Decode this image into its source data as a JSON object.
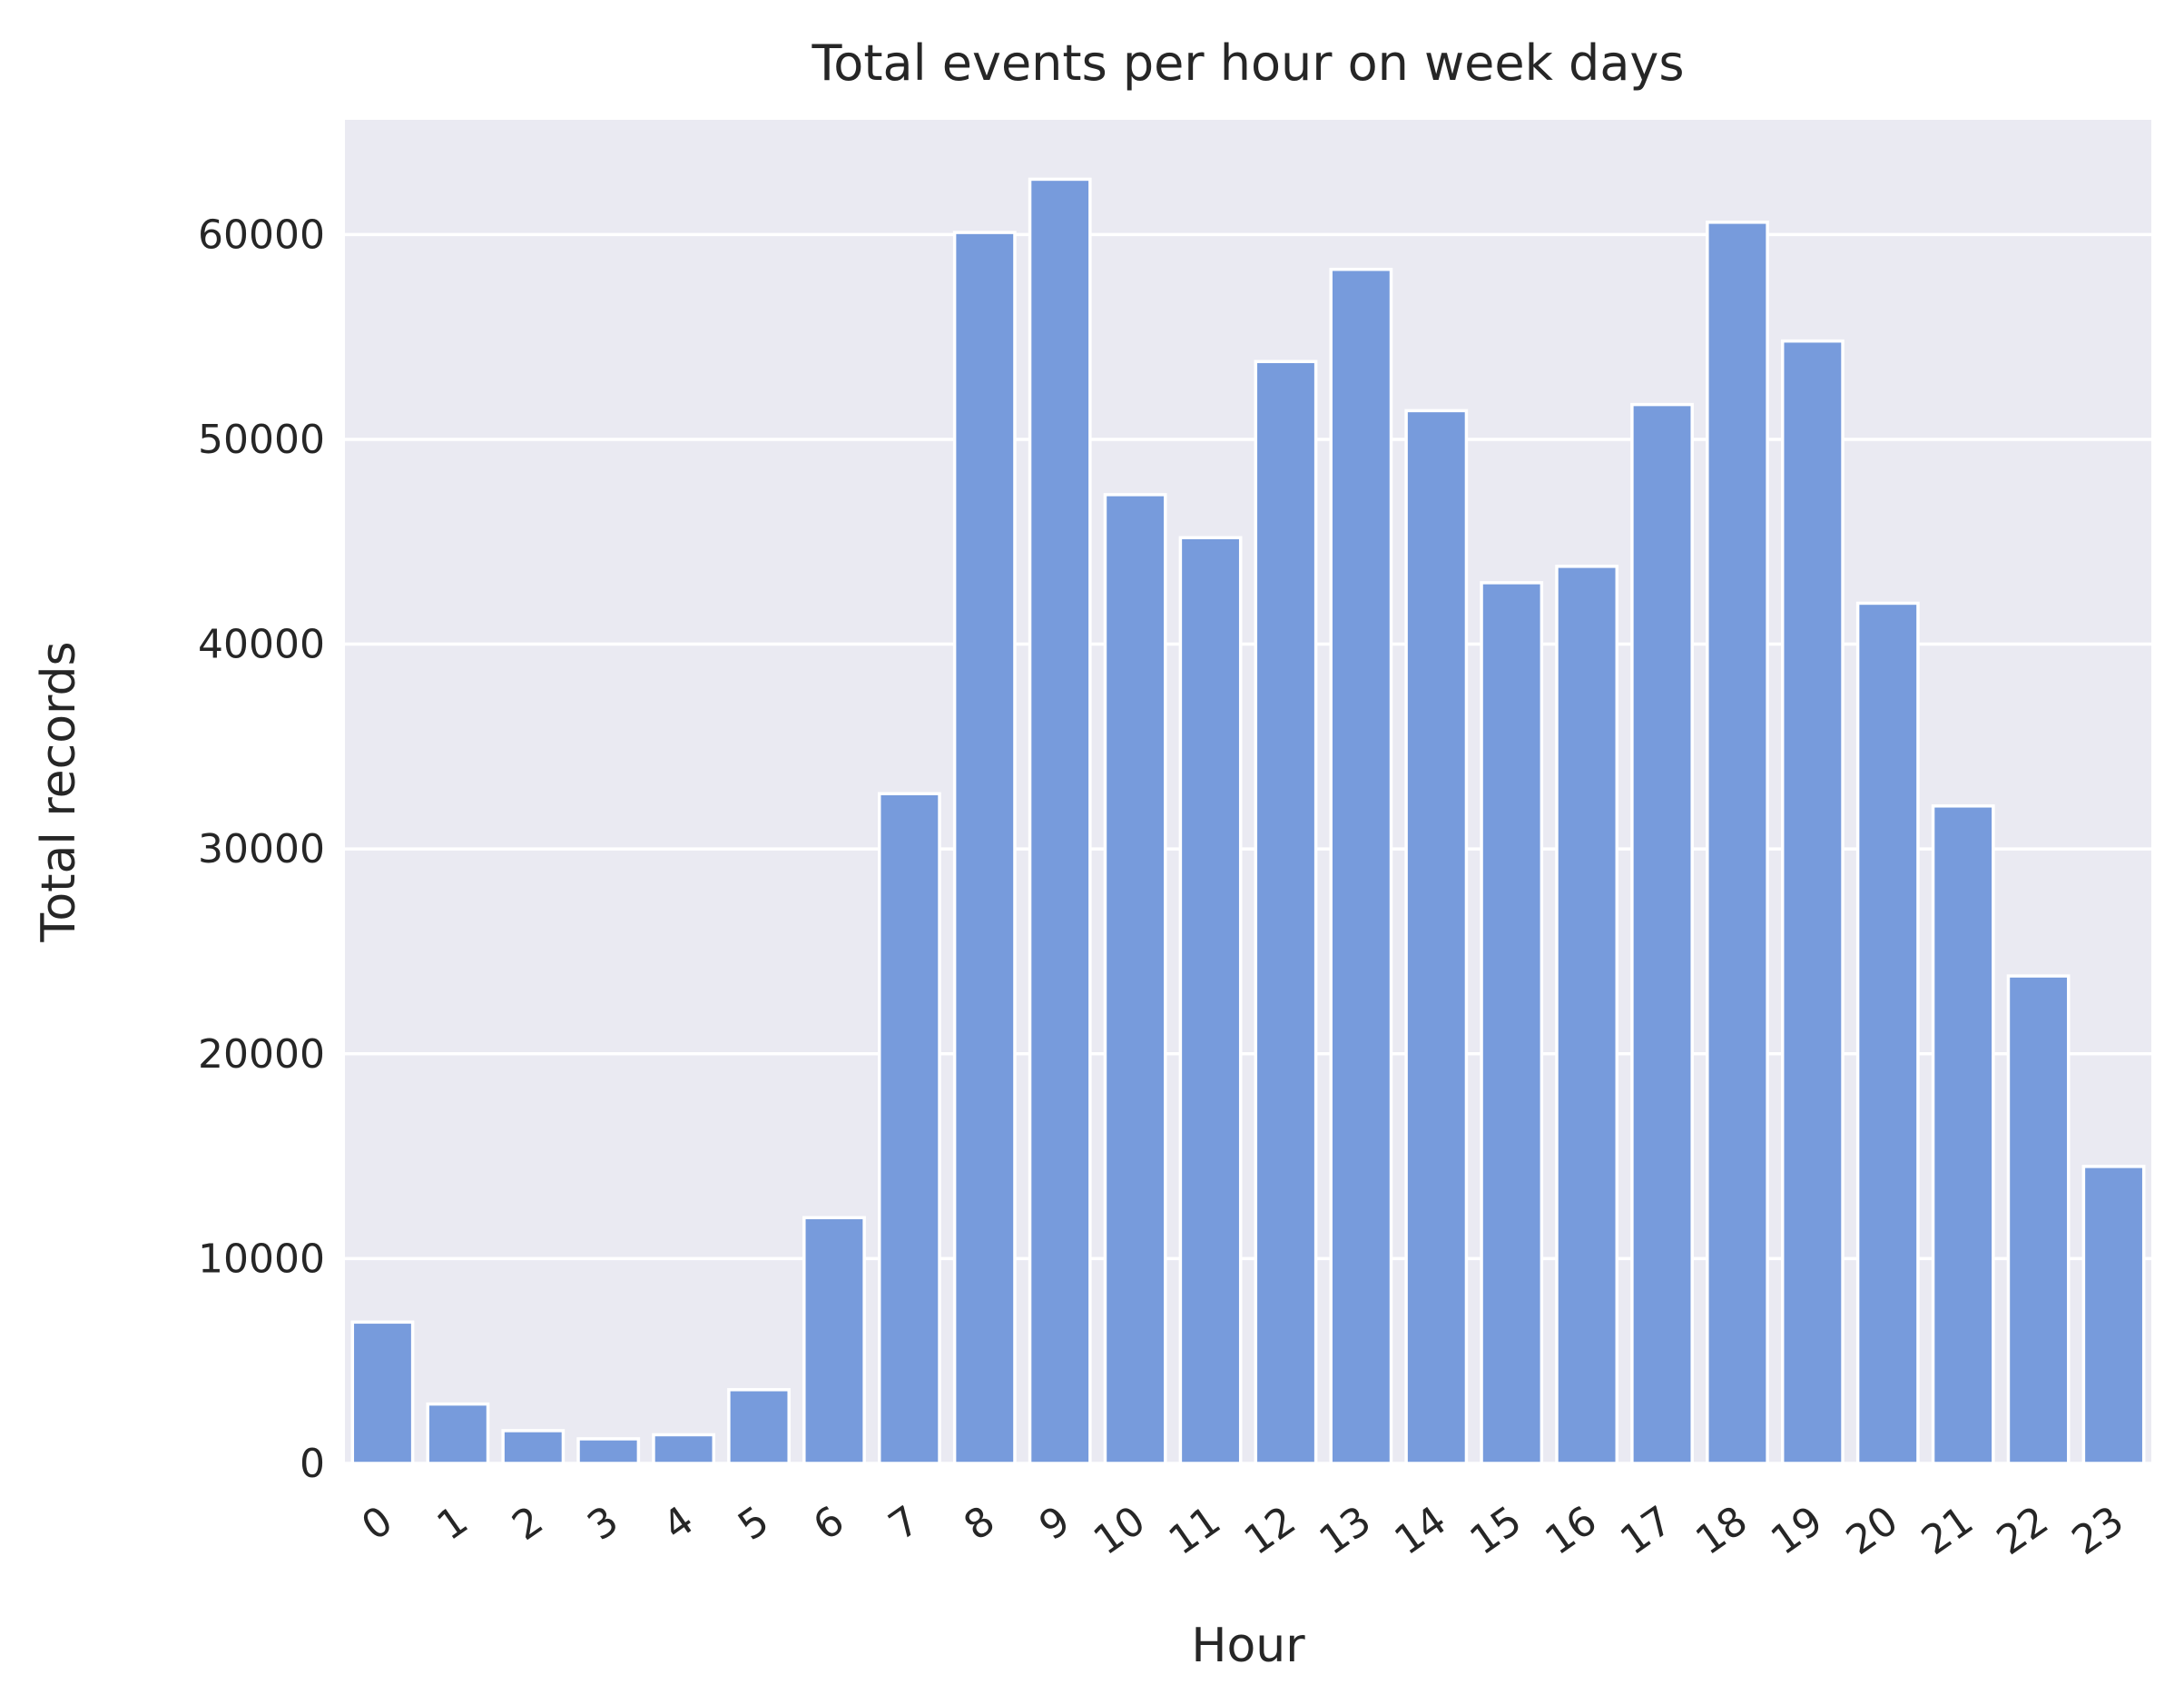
{
  "chart_data": {
    "type": "bar",
    "title": "Total events per hour on week days",
    "xlabel": "Hour",
    "ylabel": "Total records",
    "categories": [
      "0",
      "1",
      "2",
      "3",
      "4",
      "5",
      "6",
      "7",
      "8",
      "9",
      "10",
      "11",
      "12",
      "13",
      "14",
      "15",
      "16",
      "17",
      "18",
      "19",
      "20",
      "21",
      "22",
      "23"
    ],
    "values": [
      6900,
      2900,
      1600,
      1200,
      1400,
      3600,
      12000,
      32700,
      60100,
      62700,
      47300,
      45200,
      53800,
      58300,
      51400,
      43000,
      43800,
      51700,
      60600,
      54800,
      42000,
      32100,
      23800,
      14500
    ],
    "ylim": [
      0,
      65600
    ],
    "yticks": [
      0,
      10000,
      20000,
      30000,
      40000,
      50000,
      60000
    ],
    "ytick_labels": [
      "0",
      "10000",
      "20000",
      "30000",
      "40000",
      "50000",
      "60000"
    ],
    "grid": true,
    "legend": "none",
    "colors": {
      "bar": "#779bdc",
      "bar_edge": "#ffffff",
      "plot_background": "#eaeaf2",
      "grid": "#ffffff",
      "text": "#262626"
    }
  }
}
